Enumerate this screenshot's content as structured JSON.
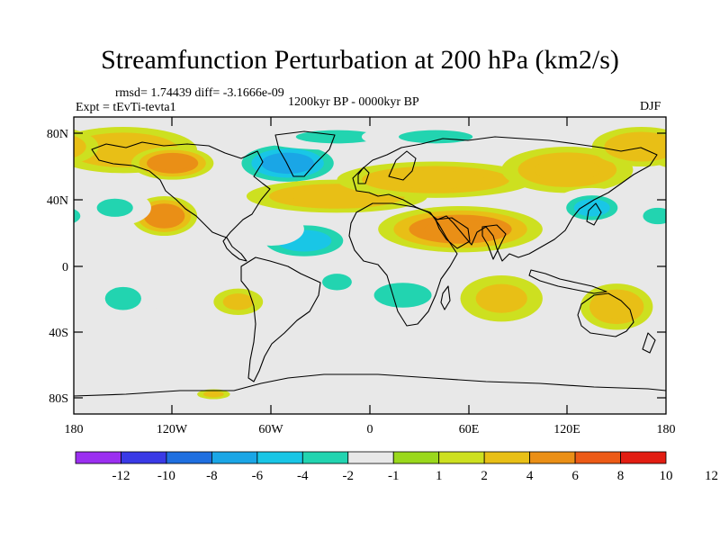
{
  "title": "Streamfunction Perturbation at 200 hPa (km2/s)",
  "stats_line": "rmsd= 1.74439 diff= -3.1666e-09",
  "experiment": "Expt = tEvTi-tevta1",
  "period": "1200kyr BP - 0000kyr BP",
  "season": "DJF",
  "lat_labels": [
    "80N",
    "40N",
    "0",
    "40S",
    "80S"
  ],
  "lon_labels": [
    "180",
    "120W",
    "60W",
    "0",
    "60E",
    "120E",
    "180"
  ],
  "colorbar": {
    "colors": [
      "#9b2ff0",
      "#3a3ae6",
      "#1f6fe0",
      "#1aa6e6",
      "#19c6e6",
      "#22d4b0",
      "#e8e8e8",
      "#9ad81c",
      "#cde020",
      "#e8bf16",
      "#ea8f16",
      "#ec5a16",
      "#e21d12"
    ],
    "labels": [
      "-12",
      "-10",
      "-8",
      "-6",
      "-4",
      "-2",
      "-1",
      "1",
      "2",
      "4",
      "6",
      "8",
      "10",
      "12"
    ]
  },
  "field": {
    "blobs": [
      {
        "lon": -150,
        "lat": 70,
        "rlon": 45,
        "rlat": 14,
        "v": 3
      },
      {
        "lon": -120,
        "lat": 62,
        "rlon": 25,
        "rlat": 10,
        "v": 4.5
      },
      {
        "lon": -50,
        "lat": 62,
        "rlon": 40,
        "rlat": 16,
        "v": -7
      },
      {
        "lon": -20,
        "lat": 78,
        "rlon": 50,
        "rlat": 8,
        "v": -3
      },
      {
        "lon": 40,
        "lat": 78,
        "rlon": 45,
        "rlat": 8,
        "v": -2.5
      },
      {
        "lon": -20,
        "lat": 42,
        "rlon": 55,
        "rlat": 10,
        "v": 2.5
      },
      {
        "lon": 40,
        "lat": 52,
        "rlon": 60,
        "rlat": 11,
        "v": 3.5
      },
      {
        "lon": 120,
        "lat": 58,
        "rlon": 40,
        "rlat": 14,
        "v": 3
      },
      {
        "lon": 165,
        "lat": 72,
        "rlon": 30,
        "rlat": 12,
        "v": 3.5
      },
      {
        "lon": -125,
        "lat": 30,
        "rlon": 20,
        "rlat": 12,
        "v": 4.5
      },
      {
        "lon": -155,
        "lat": 35,
        "rlon": 22,
        "rlat": 11,
        "v": -3
      },
      {
        "lon": -40,
        "lat": 15,
        "rlon": 38,
        "rlat": 15,
        "v": -4.5
      },
      {
        "lon": -60,
        "lat": 22,
        "rlon": 20,
        "rlat": 10,
        "v": -2
      },
      {
        "lon": 55,
        "lat": 22,
        "rlon": 50,
        "rlat": 14,
        "v": 4.5
      },
      {
        "lon": 20,
        "lat": -18,
        "rlon": 35,
        "rlat": 15,
        "v": -2.5
      },
      {
        "lon": -20,
        "lat": -10,
        "rlon": 18,
        "rlat": 10,
        "v": -3
      },
      {
        "lon": 80,
        "lat": -20,
        "rlon": 25,
        "rlat": 14,
        "v": 2
      },
      {
        "lon": 135,
        "lat": 35,
        "rlon": 25,
        "rlat": 12,
        "v": -4.5
      },
      {
        "lon": 175,
        "lat": 30,
        "rlon": 18,
        "rlat": 10,
        "v": -2.5
      },
      {
        "lon": 150,
        "lat": -25,
        "rlon": 22,
        "rlat": 14,
        "v": 3
      },
      {
        "lon": -150,
        "lat": -20,
        "rlon": 22,
        "rlat": 14,
        "v": -3
      },
      {
        "lon": -80,
        "lat": -22,
        "rlon": 15,
        "rlat": 8,
        "v": 2
      },
      {
        "lon": -5,
        "lat": -45,
        "rlon": 60,
        "rlat": 12,
        "v": -2
      },
      {
        "lon": 100,
        "lat": -45,
        "rlon": 25,
        "rlat": 8,
        "v": -1.8
      },
      {
        "lon": -95,
        "lat": -78,
        "rlon": 10,
        "rlat": 3,
        "v": 2
      }
    ]
  }
}
